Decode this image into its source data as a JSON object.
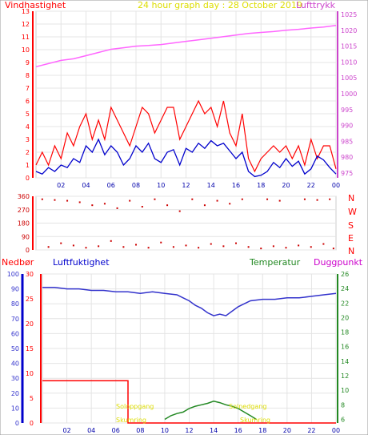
{
  "header": {
    "left_label": "Vindhastighet",
    "center_label": "24 hour graph day : 28 October 2019",
    "right_label": "Lufttrykk"
  },
  "lower_header": {
    "precip_label": "Nedbør",
    "humidity_label": "Luftfuktighet",
    "temp_label": "Temperatur",
    "dew_label": "Duggpunkt"
  },
  "compass": [
    "N",
    "W",
    "S",
    "E",
    "N"
  ],
  "annotations": {
    "sunrise": "Soloppgang",
    "sunset": "Solnedgang",
    "twilight": "Skumring"
  },
  "colors": {
    "wind_axis": "#ff0000",
    "pressure_axis": "#cc44cc",
    "pressure_line": "#ff66ff",
    "gust": "#ff0000",
    "avg_wind": "#0000cc",
    "direction": "#cc0000",
    "humidity": "#3333cc",
    "precip": "#ff0000",
    "precip_axis": "#0000cc",
    "temp": "#228822",
    "title": "#dddd00",
    "annotation": "#dddd00"
  },
  "chart_data": [
    {
      "type": "line",
      "name": "wind-pressure",
      "x_ticks": [
        "02",
        "04",
        "06",
        "08",
        "10",
        "12",
        "14",
        "16",
        "18",
        "20",
        "22",
        "00"
      ],
      "y_left_ticks": [
        0,
        1,
        2,
        3,
        4,
        5,
        6,
        7,
        8,
        9,
        10,
        11,
        12,
        13
      ],
      "y_left_range": [
        0,
        13
      ],
      "y_right_ticks": [
        975,
        980,
        985,
        990,
        995,
        1000,
        1005,
        1010,
        1015,
        1020,
        1025
      ],
      "y_right_range": [
        973.5,
        1026
      ],
      "x_range_hours": [
        0,
        24
      ],
      "pressure_x": [
        0,
        1,
        2,
        3,
        4,
        5,
        6,
        7,
        8,
        9,
        10,
        11,
        12,
        13,
        14,
        15,
        16,
        17,
        18,
        19,
        20,
        21,
        22,
        23,
        24
      ],
      "pressure_y": [
        1008.5,
        1009.5,
        1010.5,
        1011,
        1012,
        1013,
        1014,
        1014.5,
        1015,
        1015.2,
        1015.5,
        1016,
        1016.5,
        1017,
        1017.5,
        1018,
        1018.5,
        1019,
        1019.3,
        1019.6,
        1020,
        1020.3,
        1020.7,
        1021,
        1021.5
      ],
      "avg_x": [
        0,
        0.5,
        1,
        1.5,
        2,
        2.5,
        3,
        3.5,
        4,
        4.5,
        5,
        5.5,
        6,
        6.5,
        7,
        7.5,
        8,
        8.5,
        9,
        9.5,
        10,
        10.5,
        11,
        11.5,
        12,
        12.5,
        13,
        13.5,
        14,
        14.5,
        15,
        15.5,
        16,
        16.5,
        17,
        17.5,
        18,
        18.5,
        19,
        19.5,
        20,
        20.5,
        21,
        21.5,
        22,
        22.5,
        23,
        23.5,
        24
      ],
      "avg_y": [
        0.5,
        0.3,
        0.8,
        0.5,
        1,
        0.8,
        1.5,
        1.2,
        2.5,
        2,
        3,
        1.8,
        2.5,
        2,
        1,
        1.5,
        2.5,
        2,
        2.7,
        1.5,
        1.2,
        2,
        2.2,
        1,
        2.3,
        2,
        2.7,
        2.3,
        2.9,
        2.5,
        2.7,
        2.1,
        1.5,
        2,
        0.5,
        0.1,
        0.2,
        0.5,
        1.2,
        0.8,
        1.5,
        0.9,
        1.3,
        0.3,
        0.7,
        1.7,
        1.4,
        0.8,
        0.3
      ],
      "gust_x": [
        0,
        0.5,
        1,
        1.5,
        2,
        2.5,
        3,
        3.5,
        4,
        4.5,
        5,
        5.5,
        6,
        6.5,
        7,
        7.5,
        8,
        8.5,
        9,
        9.5,
        10,
        10.5,
        11,
        11.5,
        12,
        12.5,
        13,
        13.5,
        14,
        14.5,
        15,
        15.5,
        16,
        16.5,
        17,
        17.5,
        18,
        18.5,
        19,
        19.5,
        20,
        20.5,
        21,
        21.5,
        22,
        22.5,
        23,
        23.5,
        24
      ],
      "gust_y": [
        1,
        2,
        1,
        2.5,
        1.5,
        3.5,
        2.5,
        4,
        5,
        3,
        4.5,
        3,
        5.5,
        4.5,
        3.5,
        2.5,
        4,
        5.5,
        5,
        3.5,
        4.5,
        5.5,
        5.5,
        3,
        4,
        5,
        6,
        5,
        5.5,
        4,
        6,
        3.5,
        2.5,
        5,
        1.5,
        0.5,
        1.5,
        2,
        2.5,
        2,
        2.5,
        1.5,
        2.5,
        1,
        3,
        1.5,
        2.5,
        2.5,
        0.7
      ],
      "direction": [
        {
          "x": 0.5,
          "y": 340
        },
        {
          "x": 1.5,
          "y": 335
        },
        {
          "x": 2.5,
          "y": 330
        },
        {
          "x": 3.5,
          "y": 320
        },
        {
          "x": 4.5,
          "y": 300
        },
        {
          "x": 5.5,
          "y": 310
        },
        {
          "x": 6.5,
          "y": 280
        },
        {
          "x": 7.5,
          "y": 330
        },
        {
          "x": 8.5,
          "y": 290
        },
        {
          "x": 9.5,
          "y": 340
        },
        {
          "x": 10.5,
          "y": 300
        },
        {
          "x": 11.5,
          "y": 260
        },
        {
          "x": 12.5,
          "y": 340
        },
        {
          "x": 13.5,
          "y": 300
        },
        {
          "x": 14.5,
          "y": 330
        },
        {
          "x": 15.5,
          "y": 310
        },
        {
          "x": 16.5,
          "y": 340
        },
        {
          "x": 18.5,
          "y": 340
        },
        {
          "x": 19.5,
          "y": 330
        },
        {
          "x": 21.5,
          "y": 340
        },
        {
          "x": 22.5,
          "y": 335
        },
        {
          "x": 23.5,
          "y": 340
        },
        {
          "x": 1,
          "y": 20
        },
        {
          "x": 2,
          "y": 45
        },
        {
          "x": 3,
          "y": 30
        },
        {
          "x": 4,
          "y": 15
        },
        {
          "x": 5,
          "y": 25
        },
        {
          "x": 6,
          "y": 60
        },
        {
          "x": 7,
          "y": 20
        },
        {
          "x": 8,
          "y": 35
        },
        {
          "x": 9,
          "y": 15
        },
        {
          "x": 10,
          "y": 50
        },
        {
          "x": 11,
          "y": 20
        },
        {
          "x": 12,
          "y": 30
        },
        {
          "x": 13,
          "y": 15
        },
        {
          "x": 14,
          "y": 40
        },
        {
          "x": 15,
          "y": 25
        },
        {
          "x": 16,
          "y": 45
        },
        {
          "x": 17,
          "y": 20
        },
        {
          "x": 18,
          "y": 10
        },
        {
          "x": 19,
          "y": 25
        },
        {
          "x": 20,
          "y": 15
        },
        {
          "x": 21,
          "y": 30
        },
        {
          "x": 22,
          "y": 20
        },
        {
          "x": 23,
          "y": 40
        },
        {
          "x": 23.8,
          "y": 10
        }
      ],
      "dir_range": [
        0,
        360
      ],
      "dir_ticks": [
        0,
        90,
        180,
        270,
        360
      ]
    },
    {
      "type": "line",
      "name": "humidity-temp",
      "x_ticks": [
        "02",
        "04",
        "06",
        "08",
        "10",
        "12",
        "14",
        "16",
        "18",
        "20",
        "22",
        "00"
      ],
      "humidity_ticks": [
        0,
        10,
        20,
        30,
        40,
        50,
        60,
        70,
        80,
        90,
        100
      ],
      "humidity_range": [
        0,
        100
      ],
      "precip_ticks": [
        0,
        5,
        10,
        15,
        20,
        25,
        30
      ],
      "precip_range": [
        0,
        30
      ],
      "temp_ticks": [
        6,
        8,
        10,
        12,
        14,
        16,
        18,
        20,
        22,
        24,
        26
      ],
      "temp_range": [
        5.5,
        26
      ],
      "humidity_x": [
        0,
        1,
        2,
        3,
        4,
        5,
        6,
        7,
        8,
        9,
        10,
        11,
        11.5,
        12,
        12.5,
        13,
        13.5,
        14,
        14.5,
        15,
        15.5,
        16,
        16.5,
        17,
        18,
        19,
        20,
        21,
        22,
        23,
        24
      ],
      "humidity_y": [
        91,
        91,
        90,
        90,
        89,
        89,
        88,
        88,
        87,
        88,
        87,
        86,
        84,
        82,
        79,
        77,
        74,
        72,
        73,
        72,
        75,
        78,
        80,
        82,
        83,
        83,
        84,
        84,
        85,
        86,
        87
      ],
      "precip_x": [
        0,
        7,
        7,
        24
      ],
      "precip_y": [
        8.5,
        8.5,
        0,
        0
      ],
      "temp_x": [
        10,
        10.5,
        11,
        11.5,
        12,
        12.5,
        13,
        13.5,
        14,
        14.5,
        15,
        15.5,
        16,
        16.5,
        17,
        17.5
      ],
      "temp_y": [
        6,
        6.5,
        6.8,
        7,
        7.5,
        7.8,
        8,
        8.2,
        8.5,
        8.3,
        8,
        7.8,
        7.5,
        7,
        6.5,
        6
      ]
    }
  ]
}
